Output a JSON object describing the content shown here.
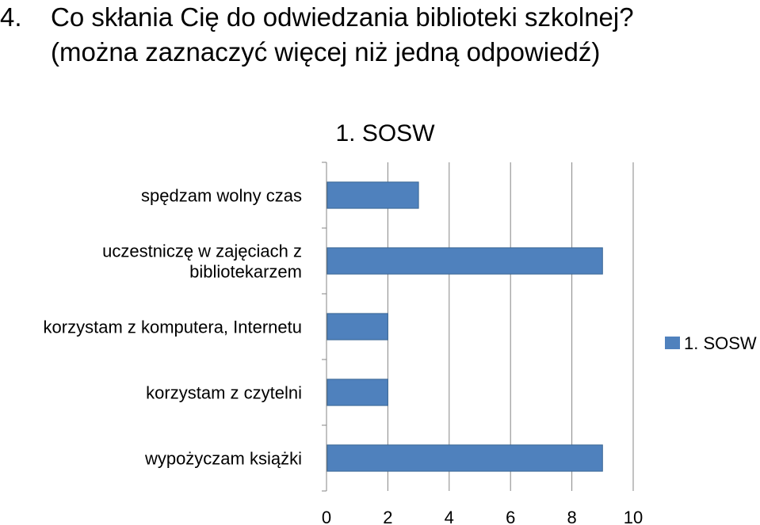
{
  "slide": {
    "number": "4.",
    "title_line1": "Co skłania Cię do odwiedzania biblioteki szkolnej?",
    "title_line2": "(można zaznaczyć więcej niż jedną odpowiedź)"
  },
  "chart_data": {
    "type": "bar",
    "orientation": "horizontal",
    "title": "1. SOSW",
    "categories": [
      "spędzam wolny czas",
      "uczestniczę w zajęciach z bibliotekarzem",
      "korzystam z komputera, Internetu",
      "korzystam z czytelni",
      "wypożyczam książki"
    ],
    "category_label_lines": [
      [
        "spędzam wolny czas"
      ],
      [
        "uczestniczę w zajęciach z",
        "bibliotekarzem"
      ],
      [
        "korzystam z komputera, Internetu"
      ],
      [
        "korzystam z czytelni"
      ],
      [
        "wypożyczam książki"
      ]
    ],
    "series": [
      {
        "name": "1. SOSW",
        "color": "#4F81BD",
        "values": [
          3,
          9,
          2,
          2,
          9
        ]
      }
    ],
    "xlim": [
      0,
      10
    ],
    "x_ticks": [
      "0",
      "2",
      "4",
      "6",
      "8",
      "10"
    ],
    "xlabel": "",
    "ylabel": "",
    "grid": "vertical",
    "legend_position": "right"
  }
}
